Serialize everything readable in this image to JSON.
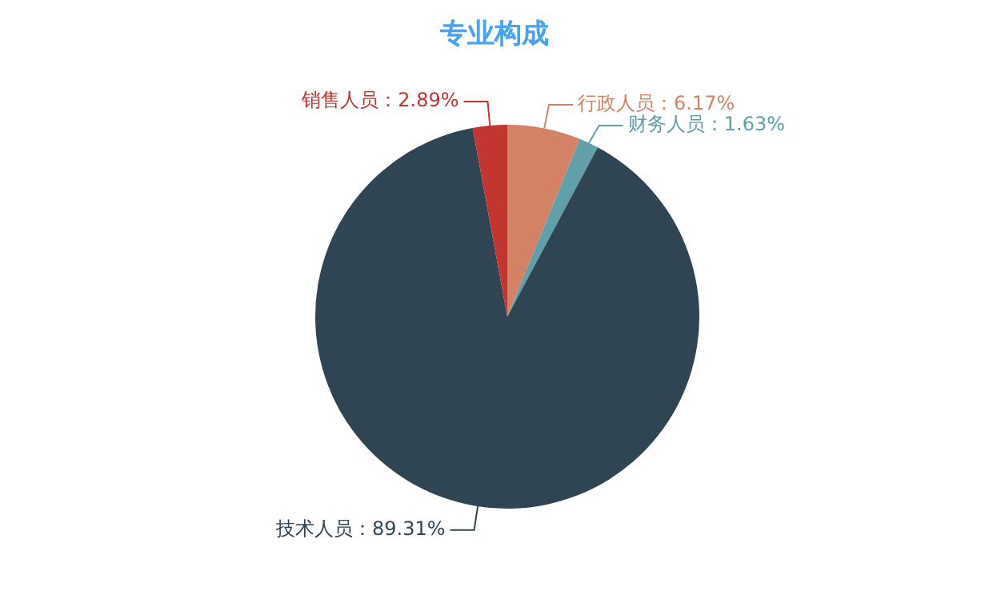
{
  "chart_data": {
    "type": "pie",
    "title": "专业构成",
    "categories": [
      "行政人员",
      "财务人员",
      "技术人员",
      "销售人员"
    ],
    "values": [
      6.17,
      1.63,
      89.31,
      2.89
    ],
    "colors": [
      "#d48265",
      "#61a0a8",
      "#2f4554",
      "#c23531"
    ],
    "value_labels": [
      "6.17%",
      "1.63%",
      "89.31%",
      "2.89%"
    ],
    "legend": false
  }
}
